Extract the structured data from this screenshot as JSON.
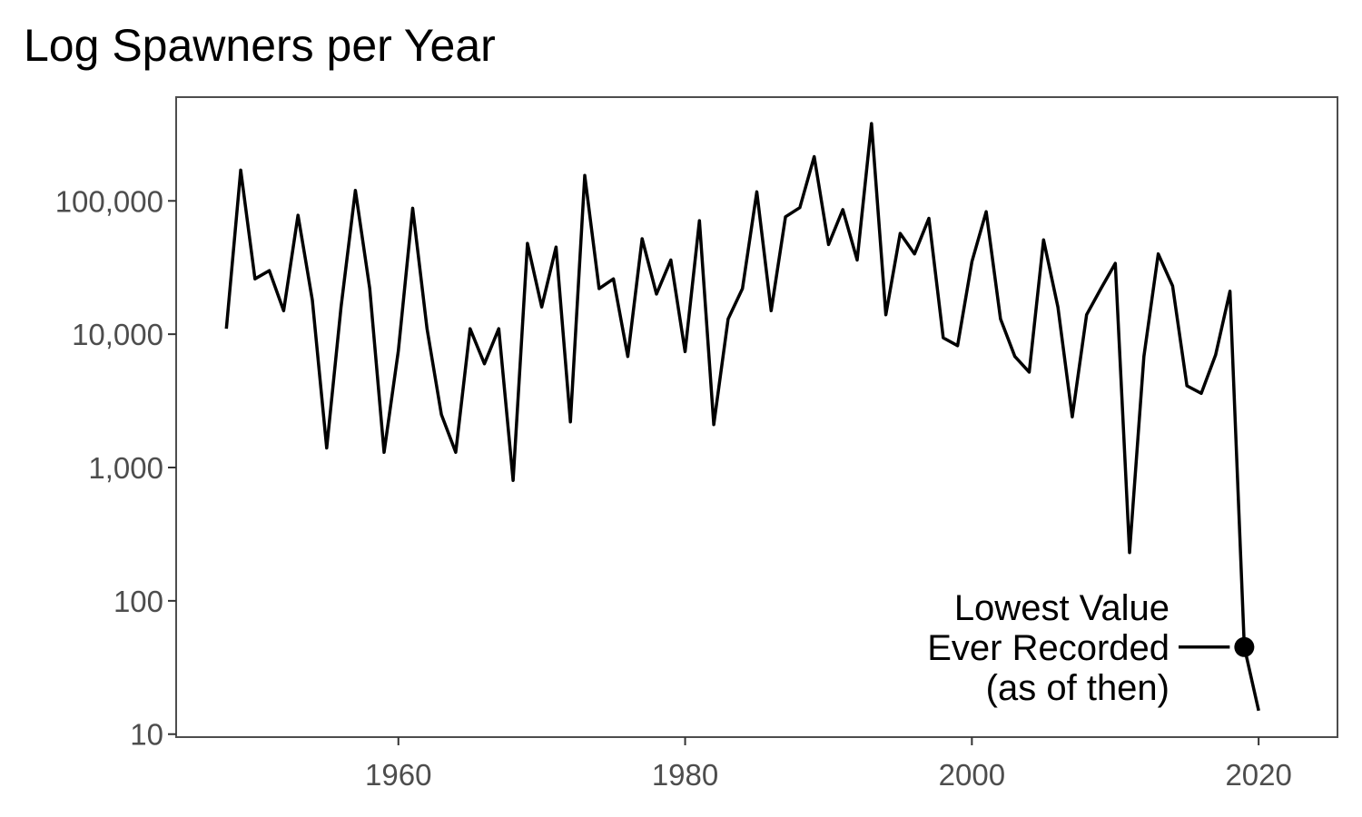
{
  "chart_data": {
    "type": "line",
    "title": "Log Spawners per Year",
    "xlabel": "",
    "ylabel": "",
    "y_scale": "log10",
    "xlim": [
      1944.5,
      2025.5
    ],
    "ylim": [
      9.5,
      600000
    ],
    "grid": false,
    "legend": "none",
    "x_ticks": [
      1960,
      1980,
      2000,
      2020
    ],
    "x_tick_labels": [
      "1960",
      "1980",
      "2000",
      "2020"
    ],
    "y_ticks": [
      10,
      100,
      1000,
      10000,
      100000
    ],
    "y_tick_labels": [
      "10",
      "100",
      "1,000",
      "10,000",
      "100,000"
    ],
    "line_color": "#000000",
    "series": [
      {
        "x": [
          1948,
          1949,
          1950,
          1951,
          1952,
          1953,
          1954,
          1955,
          1956,
          1957,
          1958,
          1959,
          1960,
          1961,
          1962,
          1963,
          1964,
          1965,
          1966,
          1967,
          1968,
          1969,
          1970,
          1971,
          1972,
          1973,
          1974,
          1975,
          1976,
          1977,
          1978,
          1979,
          1980,
          1981,
          1982,
          1983,
          1984,
          1985,
          1986,
          1987,
          1988,
          1989,
          1990,
          1991,
          1992,
          1993,
          1994,
          1995,
          1996,
          1997,
          1998,
          1999,
          2000,
          2001,
          2002,
          2003,
          2004,
          2005,
          2006,
          2007,
          2008,
          2009,
          2010,
          2011,
          2012,
          2013,
          2014,
          2015,
          2016,
          2017,
          2018,
          2019,
          2020
        ],
        "values": [
          11000,
          170000,
          26000,
          30000,
          15000,
          78000,
          18000,
          1400,
          16000,
          120000,
          22000,
          1300,
          7500,
          88000,
          11000,
          2500,
          1300,
          11000,
          6000,
          11000,
          800,
          48000,
          16000,
          45000,
          2200,
          155000,
          22000,
          26000,
          6800,
          52000,
          20000,
          36000,
          7400,
          71000,
          2100,
          13000,
          22000,
          117000,
          15000,
          76000,
          89000,
          215000,
          47000,
          86000,
          36000,
          380000,
          14000,
          57000,
          40000,
          74000,
          9400,
          8200,
          35000,
          83000,
          13000,
          6800,
          5200,
          51000,
          16000,
          2400,
          14000,
          22000,
          34000,
          230,
          6800,
          40000,
          23000,
          4100,
          3600,
          7000,
          21000,
          45,
          15
        ]
      }
    ],
    "annotation": {
      "lines": [
        "Lowest Value",
        "Ever Recorded",
        "(as of then)"
      ],
      "point": {
        "x": 2019,
        "y": 45
      }
    }
  }
}
